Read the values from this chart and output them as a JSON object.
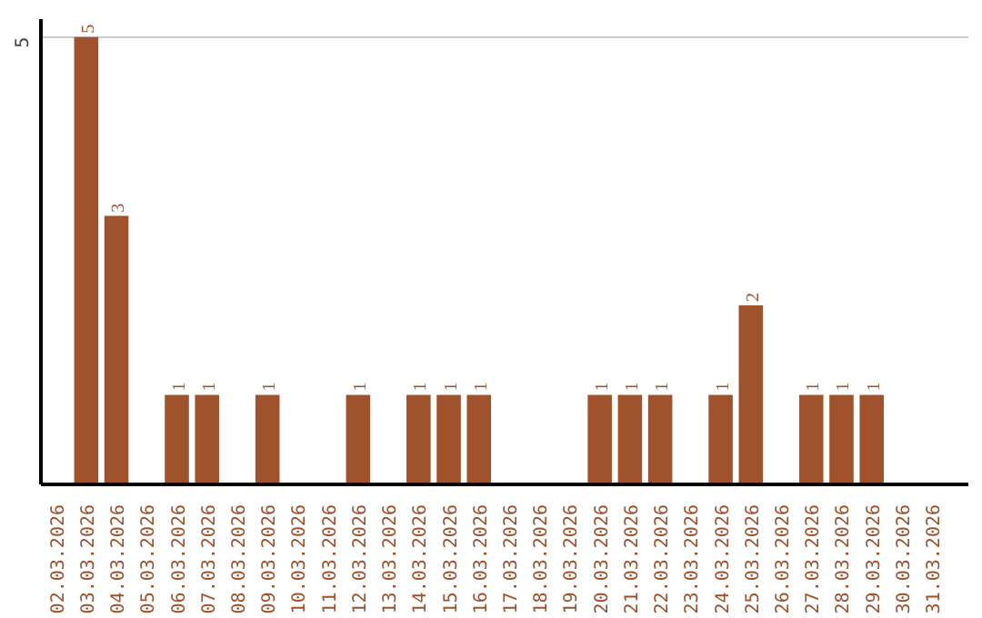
{
  "chart_data": {
    "type": "bar",
    "categories": [
      "02.03.2026",
      "03.03.2026",
      "04.03.2026",
      "05.03.2026",
      "06.03.2026",
      "07.03.2026",
      "08.03.2026",
      "09.03.2026",
      "10.03.2026",
      "11.03.2026",
      "12.03.2026",
      "13.03.2026",
      "14.03.2026",
      "15.03.2026",
      "16.03.2026",
      "17.03.2026",
      "18.03.2026",
      "19.03.2026",
      "20.03.2026",
      "21.03.2026",
      "22.03.2026",
      "23.03.2026",
      "24.03.2026",
      "25.03.2026",
      "26.03.2026",
      "27.03.2026",
      "28.03.2026",
      "29.03.2026",
      "30.03.2026",
      "31.03.2026"
    ],
    "values": [
      0,
      5,
      3,
      0,
      1,
      1,
      0,
      1,
      0,
      0,
      1,
      0,
      1,
      1,
      1,
      0,
      0,
      0,
      1,
      1,
      1,
      0,
      1,
      2,
      0,
      1,
      1,
      1,
      0,
      0
    ],
    "value_labels": [
      null,
      "5",
      "3",
      null,
      "1",
      "1",
      null,
      "1",
      null,
      null,
      "1",
      null,
      "1",
      "1",
      "1",
      null,
      null,
      null,
      "1",
      "1",
      "1",
      null,
      "1",
      "2",
      null,
      "1",
      "1",
      "1",
      null,
      null
    ],
    "color": "#a0522d",
    "ylim": [
      0,
      5.2
    ],
    "yticks": [
      5
    ],
    "grid": "y"
  }
}
